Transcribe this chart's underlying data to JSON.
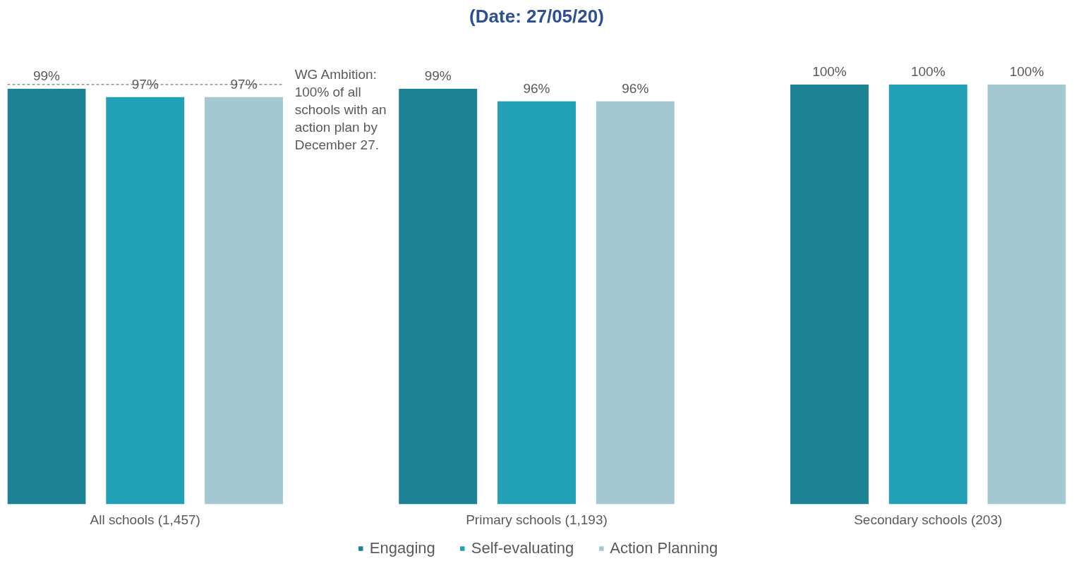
{
  "chart_data": {
    "type": "bar",
    "title": "(Date: 27/05/20)",
    "categories": [
      "All schools (1,457)",
      "Primary schools (1,193)",
      "Secondary schools (203)"
    ],
    "series": [
      {
        "name": "Engaging",
        "color": "#1b8393",
        "values": [
          99,
          99,
          100
        ],
        "value_labels": [
          "99%",
          "99%",
          "100%"
        ]
      },
      {
        "name": "Self-evaluating",
        "color": "#22a1b6",
        "values": [
          97,
          96,
          100
        ],
        "value_labels": [
          "97%",
          "96%",
          "100%"
        ]
      },
      {
        "name": "Action Planning",
        "color": "#a3c8d2",
        "values": [
          97,
          96,
          100
        ],
        "value_labels": [
          "97%",
          "96%",
          "100%"
        ]
      }
    ],
    "ref_lines": [
      {
        "axis": "y",
        "value": 100,
        "label": "WG Ambition: 100% of all schools with an action plan by December 27.",
        "line_style": "dashed",
        "color": "#595959"
      }
    ],
    "legend": "bottom",
    "grid": false,
    "tick_labels": "x"
  }
}
